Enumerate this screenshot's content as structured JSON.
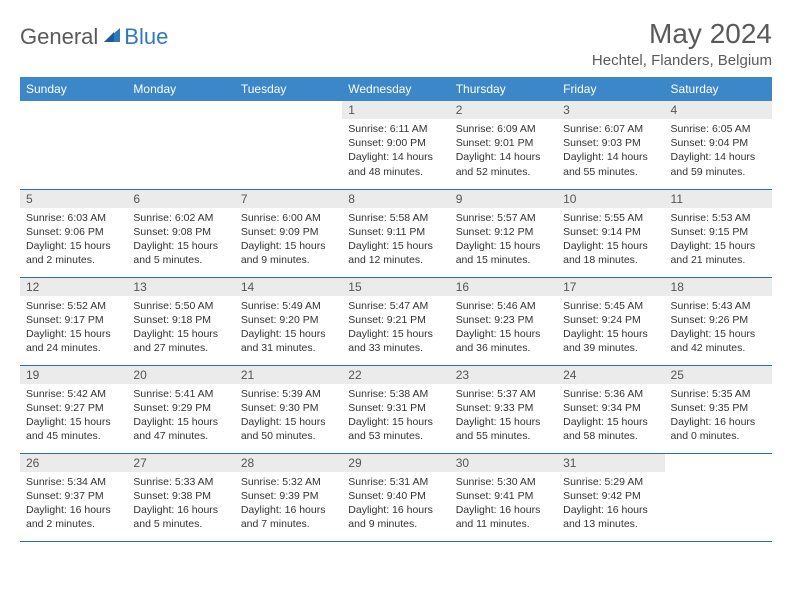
{
  "brand": {
    "part1": "General",
    "part2": "Blue"
  },
  "title": "May 2024",
  "location": "Hechtel, Flanders, Belgium",
  "header_bg": "#3b87c8",
  "weekdays": [
    "Sunday",
    "Monday",
    "Tuesday",
    "Wednesday",
    "Thursday",
    "Friday",
    "Saturday"
  ],
  "daynum_bg": "#ebebeb",
  "border_color": "#2f6fa8",
  "text_color": "#333333",
  "title_color": "#5a5a5a",
  "font_size_title": 28,
  "font_size_location": 15,
  "font_size_weekday": 12,
  "font_size_daynum": 12,
  "font_size_body": 10.5,
  "weeks": [
    [
      null,
      null,
      null,
      {
        "n": "1",
        "sr": "6:11 AM",
        "ss": "9:00 PM",
        "dl": "14 hours and 48 minutes."
      },
      {
        "n": "2",
        "sr": "6:09 AM",
        "ss": "9:01 PM",
        "dl": "14 hours and 52 minutes."
      },
      {
        "n": "3",
        "sr": "6:07 AM",
        "ss": "9:03 PM",
        "dl": "14 hours and 55 minutes."
      },
      {
        "n": "4",
        "sr": "6:05 AM",
        "ss": "9:04 PM",
        "dl": "14 hours and 59 minutes."
      }
    ],
    [
      {
        "n": "5",
        "sr": "6:03 AM",
        "ss": "9:06 PM",
        "dl": "15 hours and 2 minutes."
      },
      {
        "n": "6",
        "sr": "6:02 AM",
        "ss": "9:08 PM",
        "dl": "15 hours and 5 minutes."
      },
      {
        "n": "7",
        "sr": "6:00 AM",
        "ss": "9:09 PM",
        "dl": "15 hours and 9 minutes."
      },
      {
        "n": "8",
        "sr": "5:58 AM",
        "ss": "9:11 PM",
        "dl": "15 hours and 12 minutes."
      },
      {
        "n": "9",
        "sr": "5:57 AM",
        "ss": "9:12 PM",
        "dl": "15 hours and 15 minutes."
      },
      {
        "n": "10",
        "sr": "5:55 AM",
        "ss": "9:14 PM",
        "dl": "15 hours and 18 minutes."
      },
      {
        "n": "11",
        "sr": "5:53 AM",
        "ss": "9:15 PM",
        "dl": "15 hours and 21 minutes."
      }
    ],
    [
      {
        "n": "12",
        "sr": "5:52 AM",
        "ss": "9:17 PM",
        "dl": "15 hours and 24 minutes."
      },
      {
        "n": "13",
        "sr": "5:50 AM",
        "ss": "9:18 PM",
        "dl": "15 hours and 27 minutes."
      },
      {
        "n": "14",
        "sr": "5:49 AM",
        "ss": "9:20 PM",
        "dl": "15 hours and 31 minutes."
      },
      {
        "n": "15",
        "sr": "5:47 AM",
        "ss": "9:21 PM",
        "dl": "15 hours and 33 minutes."
      },
      {
        "n": "16",
        "sr": "5:46 AM",
        "ss": "9:23 PM",
        "dl": "15 hours and 36 minutes."
      },
      {
        "n": "17",
        "sr": "5:45 AM",
        "ss": "9:24 PM",
        "dl": "15 hours and 39 minutes."
      },
      {
        "n": "18",
        "sr": "5:43 AM",
        "ss": "9:26 PM",
        "dl": "15 hours and 42 minutes."
      }
    ],
    [
      {
        "n": "19",
        "sr": "5:42 AM",
        "ss": "9:27 PM",
        "dl": "15 hours and 45 minutes."
      },
      {
        "n": "20",
        "sr": "5:41 AM",
        "ss": "9:29 PM",
        "dl": "15 hours and 47 minutes."
      },
      {
        "n": "21",
        "sr": "5:39 AM",
        "ss": "9:30 PM",
        "dl": "15 hours and 50 minutes."
      },
      {
        "n": "22",
        "sr": "5:38 AM",
        "ss": "9:31 PM",
        "dl": "15 hours and 53 minutes."
      },
      {
        "n": "23",
        "sr": "5:37 AM",
        "ss": "9:33 PM",
        "dl": "15 hours and 55 minutes."
      },
      {
        "n": "24",
        "sr": "5:36 AM",
        "ss": "9:34 PM",
        "dl": "15 hours and 58 minutes."
      },
      {
        "n": "25",
        "sr": "5:35 AM",
        "ss": "9:35 PM",
        "dl": "16 hours and 0 minutes."
      }
    ],
    [
      {
        "n": "26",
        "sr": "5:34 AM",
        "ss": "9:37 PM",
        "dl": "16 hours and 2 minutes."
      },
      {
        "n": "27",
        "sr": "5:33 AM",
        "ss": "9:38 PM",
        "dl": "16 hours and 5 minutes."
      },
      {
        "n": "28",
        "sr": "5:32 AM",
        "ss": "9:39 PM",
        "dl": "16 hours and 7 minutes."
      },
      {
        "n": "29",
        "sr": "5:31 AM",
        "ss": "9:40 PM",
        "dl": "16 hours and 9 minutes."
      },
      {
        "n": "30",
        "sr": "5:30 AM",
        "ss": "9:41 PM",
        "dl": "16 hours and 11 minutes."
      },
      {
        "n": "31",
        "sr": "5:29 AM",
        "ss": "9:42 PM",
        "dl": "16 hours and 13 minutes."
      },
      null
    ]
  ]
}
